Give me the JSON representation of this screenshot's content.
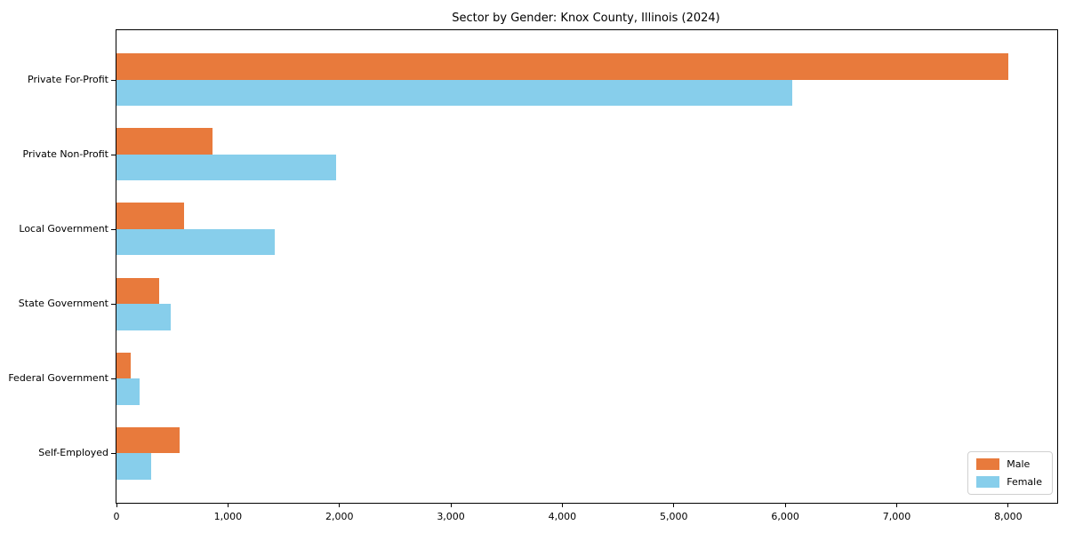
{
  "chart_data": {
    "type": "bar",
    "orientation": "horizontal",
    "title": "Sector by Gender: Knox County, Illinois (2024)",
    "categories": [
      "Private For-Profit",
      "Private Non-Profit",
      "Local Government",
      "State Government",
      "Federal Government",
      "Self-Employed"
    ],
    "series": [
      {
        "name": "Male",
        "color": "#E87A3C",
        "values": [
          8000,
          860,
          610,
          380,
          130,
          570
        ]
      },
      {
        "name": "Female",
        "color": "#87CEEB",
        "values": [
          6060,
          1970,
          1420,
          490,
          210,
          310
        ]
      }
    ],
    "xlim": [
      0,
      8440
    ],
    "xticks": [
      0,
      1000,
      2000,
      3000,
      4000,
      5000,
      6000,
      7000,
      8000
    ],
    "grid": false,
    "legend_position": "lower right",
    "bar_height_units": 0.35,
    "y_edge_padding_units": 0.66
  }
}
